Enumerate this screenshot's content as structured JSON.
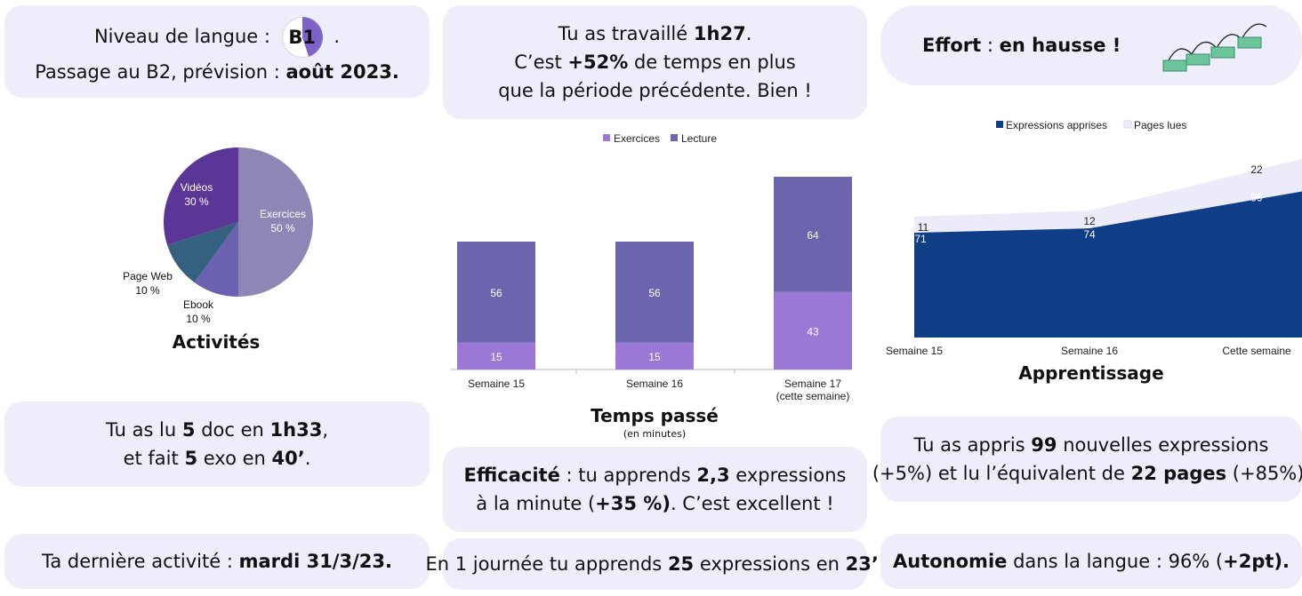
{
  "cards": {
    "level": {
      "l1_pre": "Niveau de langue :",
      "badge": "B1",
      "l1_post": ".",
      "l2_pre": "Passage au B2, prévision :",
      "l2_bold": "août 2023."
    },
    "work": {
      "l1_pre": "Tu as travaillé",
      "l1_bold": "1h27",
      "l1_post": ".",
      "l2_pre": "C’est",
      "l2_bold": "+52%",
      "l2_post": "de temps en plus",
      "l3": "que la période précédente. Bien !"
    },
    "effort": {
      "label": "Effort",
      "sep": ":",
      "value": "en hausse !"
    },
    "read": {
      "l1_a": "Tu as lu",
      "l1_b": "5",
      "l1_c": "doc en",
      "l1_d": "1h33",
      "l1_e": ",",
      "l2_a": "et fait",
      "l2_b": "5",
      "l2_c": "exo en",
      "l2_d": "40’",
      "l2_e": "."
    },
    "efficiency": {
      "l1_bold": "Efficacité",
      "l1_a": ": tu apprends",
      "l1_b": "2,3",
      "l1_c": "expressions",
      "l2_a": "à la minute (",
      "l2_b": "+35 %)",
      "l2_c": ". C’est excellent !"
    },
    "learned": {
      "l1_a": "Tu as appris",
      "l1_b": "99",
      "l1_c": "nouvelles expressions",
      "l2_a": "(+5%) et lu l’équivalent de",
      "l2_b": "22 pages",
      "l2_c": "(+85%)."
    },
    "last": {
      "pre": "Ta dernière activité :",
      "bold": "mardi 31/3/23."
    },
    "day": {
      "a": "En 1 journée tu apprends",
      "b": "25",
      "c": "expressions en",
      "d": "23’",
      "e": "."
    },
    "autonomy": {
      "bold1": "Autonomie",
      "a": "dans la langue : 96% (",
      "bold2": "+2pt).",
      "pre_close": ""
    }
  },
  "chart_data": [
    {
      "type": "pie",
      "title": "Activités",
      "slices": [
        {
          "label": "Exercices",
          "pct_label": "50 %",
          "value": 50,
          "color": "#8e86b4"
        },
        {
          "label": "Ebook",
          "pct_label": "10 %",
          "value": 10,
          "color": "#6a62b0"
        },
        {
          "label": "Page Web",
          "pct_label": "10 %",
          "value": 10,
          "color": "#35607f"
        },
        {
          "label": "Vidéos",
          "pct_label": "30 %",
          "value": 30,
          "color": "#5b3696"
        }
      ]
    },
    {
      "type": "bar",
      "stacked": true,
      "title": "Temps passé",
      "subtitle": "(en minutes)",
      "categories": [
        "Semaine 15",
        "Semaine 16",
        "Semaine 17"
      ],
      "category_sublabels": [
        "",
        "",
        "(cette semaine)"
      ],
      "series": [
        {
          "name": "Exercices",
          "values": [
            15,
            15,
            43
          ],
          "color": "#9c78d6"
        },
        {
          "name": "Lecture",
          "values": [
            56,
            56,
            64
          ],
          "color": "#6a65ac"
        }
      ],
      "legend": "top"
    },
    {
      "type": "area",
      "stacked": true,
      "title": "Apprentissage",
      "categories": [
        "Semaine 15",
        "Semaine 16",
        "Cette semaine"
      ],
      "series": [
        {
          "name": "Expressions apprises",
          "values": [
            71,
            74,
            99
          ],
          "color": "#0f3e86"
        },
        {
          "name": "Pages lues",
          "values": [
            11,
            12,
            22
          ],
          "color": "#ececf8"
        }
      ],
      "legend": "top"
    }
  ]
}
